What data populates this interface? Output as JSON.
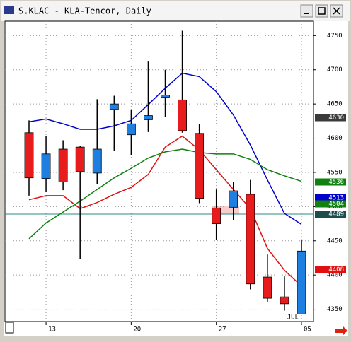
{
  "chart_data": {
    "type": "candlestick",
    "title": "S.KLAC - KLA-Tencor, Daily",
    "categories": [
      null,
      "13",
      null,
      null,
      null,
      null,
      "20",
      null,
      null,
      null,
      null,
      "27",
      null,
      null,
      null,
      null,
      "05"
    ],
    "month_label": "JUL",
    "open": [
      4608,
      4541,
      4584,
      4587,
      4549,
      4642,
      4605,
      4627,
      4660,
      4656,
      4607,
      4498,
      4499,
      4518,
      4397,
      4368,
      4343
    ],
    "high": [
      4626,
      4603,
      4597,
      4589,
      4657,
      4662,
      4642,
      4712,
      4700,
      4757,
      4621,
      4525,
      4536,
      4539,
      4430,
      4398,
      4451
    ],
    "low": [
      4516,
      4521,
      4524,
      4423,
      4533,
      4582,
      4575,
      4609,
      4631,
      4608,
      4505,
      4451,
      4480,
      4379,
      4360,
      4348,
      4343
    ],
    "close": [
      4542,
      4577,
      4536,
      4551,
      4584,
      4650,
      4621,
      4633,
      4663,
      4611,
      4512,
      4475,
      4523,
      4387,
      4366,
      4358,
      4435
    ],
    "up_color": "#1f7fe0",
    "down_color": "#e81c1c",
    "overlays": [
      {
        "color": "#0000cc",
        "values": [
          4624,
          4628,
          4621,
          4613,
          4613,
          4618,
          4626,
          4649,
          4673,
          4695,
          4690,
          4668,
          4634,
          4590,
          4539,
          4490,
          4474
        ]
      },
      {
        "color": "#e01010",
        "values": [
          4510,
          4516,
          4516,
          4497,
          4506,
          4518,
          4528,
          4547,
          4587,
          4603,
          4583,
          4554,
          4525,
          4497,
          4439,
          4407,
          4384
        ]
      },
      {
        "color": "#108010",
        "values": [
          4453,
          4476,
          4492,
          4508,
          4525,
          4542,
          4556,
          4571,
          4580,
          4584,
          4579,
          4577,
          4577,
          4569,
          4554,
          4545,
          4537
        ]
      }
    ],
    "price_tags": [
      {
        "value": 4630,
        "color": "#3a3a3a",
        "line": false
      },
      {
        "value": 4536,
        "color": "#108010",
        "line": false
      },
      {
        "value": 4513,
        "color": "#0000cc",
        "line": false
      },
      {
        "value": 4504,
        "color": "#108010",
        "line": true
      },
      {
        "value": 4489,
        "color": "#1c4c4c",
        "line": true
      },
      {
        "value": 4408,
        "color": "#e01010",
        "line": false
      }
    ],
    "ylim": [
      4332,
      4771
    ],
    "yticks": [
      4350,
      4400,
      4450,
      4500,
      4550,
      4600,
      4650,
      4700,
      4750
    ],
    "grid": true
  }
}
